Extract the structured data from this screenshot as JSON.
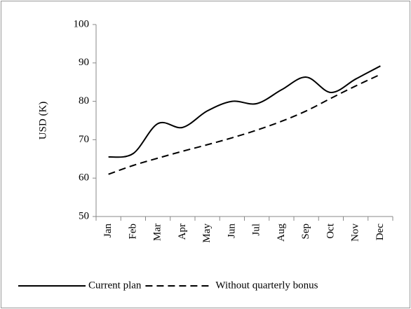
{
  "chart_data": {
    "type": "line",
    "y_label": "USD (K)",
    "categories": [
      "Jan",
      "Feb",
      "Mar",
      "Apr",
      "May",
      "Jun",
      "Jul",
      "Aug",
      "Sep",
      "Oct",
      "Nov",
      "Dec"
    ],
    "series": [
      {
        "name": "Current plan",
        "color": "#000000",
        "dash": "solid",
        "values": [
          65.5,
          66.4,
          74.2,
          73.2,
          77.5,
          80,
          79.4,
          83,
          86.3,
          82.3,
          85.8,
          89.2
        ]
      },
      {
        "name": "Without quarterly bonus",
        "color": "#000000",
        "dash": "dashed",
        "values": [
          61,
          63.3,
          65.2,
          67,
          68.7,
          70.5,
          72.5,
          74.8,
          77.5,
          80.8,
          84,
          87
        ]
      }
    ],
    "ylim": [
      50,
      100
    ],
    "yticks": [
      50,
      60,
      70,
      80,
      90,
      100
    ],
    "grid": false,
    "smooth": true,
    "legend": "bottom"
  }
}
